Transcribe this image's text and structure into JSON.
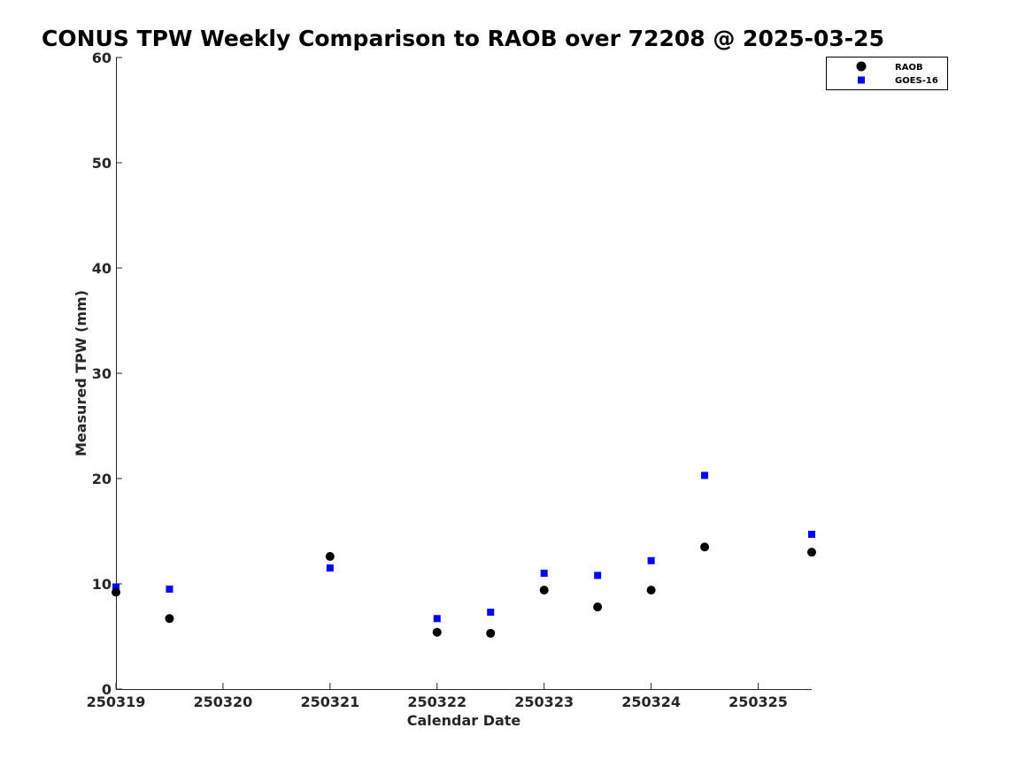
{
  "chart_data": {
    "type": "scatter",
    "title": "CONUS TPW Weekly Comparison to RAOB over 72208 @ 2025-03-25",
    "xlabel": "Calendar Date",
    "ylabel": "Measured TPW (mm)",
    "xlim": [
      "2025-03-19",
      "2025-03-25 12:00"
    ],
    "ylim": [
      0,
      60
    ],
    "x_ticks": [
      "250319",
      "250320",
      "250321",
      "250322",
      "250323",
      "250324",
      "250325"
    ],
    "y_ticks": [
      0,
      10,
      20,
      30,
      40,
      50,
      60
    ],
    "grid": false,
    "legend_position": "top-right",
    "series": [
      {
        "name": "RAOB",
        "marker": "circle",
        "color": "#000000",
        "points": [
          {
            "x": "2025-03-19 00:00",
            "y": 9.2
          },
          {
            "x": "2025-03-19 12:00",
            "y": 6.7
          },
          {
            "x": "2025-03-21 00:00",
            "y": 12.6
          },
          {
            "x": "2025-03-22 00:00",
            "y": 5.4
          },
          {
            "x": "2025-03-22 12:00",
            "y": 5.3
          },
          {
            "x": "2025-03-23 00:00",
            "y": 9.4
          },
          {
            "x": "2025-03-23 12:00",
            "y": 7.8
          },
          {
            "x": "2025-03-24 00:00",
            "y": 9.4
          },
          {
            "x": "2025-03-24 12:00",
            "y": 13.5
          },
          {
            "x": "2025-03-25 12:00",
            "y": 13.0
          }
        ]
      },
      {
        "name": "GOES-16",
        "marker": "square",
        "color": "#0000ff",
        "points": [
          {
            "x": "2025-03-19 00:00",
            "y": 9.7
          },
          {
            "x": "2025-03-19 12:00",
            "y": 9.5
          },
          {
            "x": "2025-03-21 00:00",
            "y": 11.5
          },
          {
            "x": "2025-03-22 00:00",
            "y": 6.7
          },
          {
            "x": "2025-03-22 12:00",
            "y": 7.3
          },
          {
            "x": "2025-03-23 00:00",
            "y": 11.0
          },
          {
            "x": "2025-03-23 12:00",
            "y": 10.8
          },
          {
            "x": "2025-03-24 00:00",
            "y": 12.2
          },
          {
            "x": "2025-03-24 12:00",
            "y": 20.3
          },
          {
            "x": "2025-03-25 12:00",
            "y": 14.7
          }
        ]
      }
    ]
  }
}
